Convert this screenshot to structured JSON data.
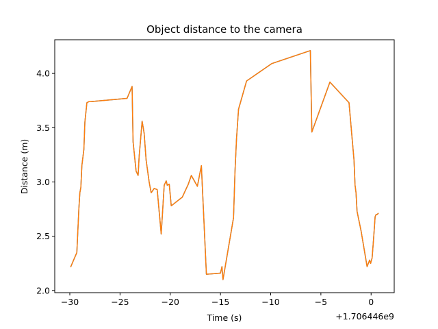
{
  "chart_data": {
    "type": "line",
    "title": "Object distance to the camera",
    "xlabel": "Time (s)",
    "ylabel": "Distance (m)",
    "x_offset_label": "+1.706446e9",
    "xlim": [
      -31.5,
      2.3
    ],
    "ylim": [
      1.98,
      4.31
    ],
    "xticks": [
      -30,
      -25,
      -20,
      -15,
      -10,
      -5,
      0
    ],
    "xtick_labels": [
      "−30",
      "−25",
      "−20",
      "−15",
      "−10",
      "−5",
      "0"
    ],
    "yticks": [
      2.0,
      2.5,
      3.0,
      3.5,
      4.0
    ],
    "ytick_labels": [
      "2.0",
      "2.5",
      "3.0",
      "3.5",
      "4.0"
    ],
    "grid": false,
    "series": [
      {
        "color": "#1f77b4",
        "x": [
          -29.9,
          -29.3,
          -29.1,
          -29.0,
          -28.9,
          -28.8,
          -28.6,
          -28.5,
          -28.3,
          -28.1,
          -27.9,
          -24.3,
          -23.8,
          -23.7,
          -23.4,
          -23.2,
          -23.1,
          -22.8,
          -22.6,
          -22.4,
          -22.1,
          -21.9,
          -21.6,
          -21.3,
          -20.9,
          -20.6,
          -20.4,
          -20.3,
          -20.1,
          -19.9,
          -18.8,
          -18.4,
          -18.2,
          -17.9,
          -17.3,
          -16.9,
          -16.4,
          -15.0,
          -14.85,
          -14.75,
          -14.6,
          -13.7,
          -13.55,
          -13.4,
          -13.2,
          -12.4,
          -9.9,
          -6.05,
          -5.9,
          -4.1,
          -2.2,
          -1.7,
          -1.6,
          -1.5,
          -1.4,
          -1.0,
          -0.4,
          -0.15,
          -0.05,
          0.1,
          0.25,
          0.4,
          0.5,
          0.6,
          0.7
        ],
        "y": [
          2.22,
          2.35,
          2.75,
          2.9,
          2.95,
          3.15,
          3.3,
          3.55,
          3.73,
          3.74,
          3.74,
          3.77,
          3.88,
          3.37,
          3.1,
          3.06,
          3.23,
          3.56,
          3.45,
          3.2,
          3.0,
          2.9,
          2.94,
          2.93,
          2.52,
          2.97,
          3.01,
          2.97,
          2.98,
          2.78,
          2.86,
          2.94,
          2.98,
          3.06,
          2.96,
          3.15,
          2.15,
          2.16,
          2.22,
          2.1,
          2.18,
          2.67,
          3.1,
          3.4,
          3.67,
          3.93,
          4.09,
          4.21,
          3.46,
          3.92,
          3.73,
          3.2,
          2.97,
          2.9,
          2.73,
          2.55,
          2.22,
          2.28,
          2.25,
          2.3,
          2.48,
          2.68,
          2.7,
          2.7,
          2.71
        ]
      },
      {
        "color": "#ff7f0e",
        "x": [
          -29.9,
          -29.3,
          -29.1,
          -29.0,
          -28.9,
          -28.8,
          -28.6,
          -28.5,
          -28.3,
          -28.1,
          -27.9,
          -24.3,
          -23.8,
          -23.7,
          -23.4,
          -23.2,
          -23.1,
          -22.8,
          -22.6,
          -22.4,
          -22.1,
          -21.9,
          -21.6,
          -21.3,
          -20.9,
          -20.6,
          -20.4,
          -20.3,
          -20.1,
          -19.9,
          -18.8,
          -18.4,
          -18.2,
          -17.9,
          -17.3,
          -16.9,
          -16.4,
          -15.0,
          -14.85,
          -14.75,
          -14.6,
          -13.7,
          -13.55,
          -13.4,
          -13.2,
          -12.4,
          -9.9,
          -6.05,
          -5.9,
          -4.1,
          -2.2,
          -1.7,
          -1.6,
          -1.5,
          -1.4,
          -1.0,
          -0.4,
          -0.15,
          -0.05,
          0.1,
          0.25,
          0.4,
          0.5,
          0.6,
          0.7
        ],
        "y": [
          2.22,
          2.35,
          2.75,
          2.9,
          2.95,
          3.15,
          3.3,
          3.55,
          3.73,
          3.74,
          3.74,
          3.77,
          3.88,
          3.37,
          3.1,
          3.06,
          3.23,
          3.56,
          3.45,
          3.2,
          3.0,
          2.9,
          2.94,
          2.93,
          2.52,
          2.97,
          3.01,
          2.97,
          2.98,
          2.78,
          2.86,
          2.94,
          2.98,
          3.06,
          2.96,
          3.15,
          2.15,
          2.16,
          2.22,
          2.1,
          2.18,
          2.67,
          3.1,
          3.4,
          3.67,
          3.93,
          4.09,
          4.21,
          3.46,
          3.92,
          3.73,
          3.2,
          2.97,
          2.9,
          2.73,
          2.55,
          2.22,
          2.28,
          2.25,
          2.3,
          2.48,
          2.68,
          2.7,
          2.7,
          2.71
        ]
      }
    ]
  }
}
